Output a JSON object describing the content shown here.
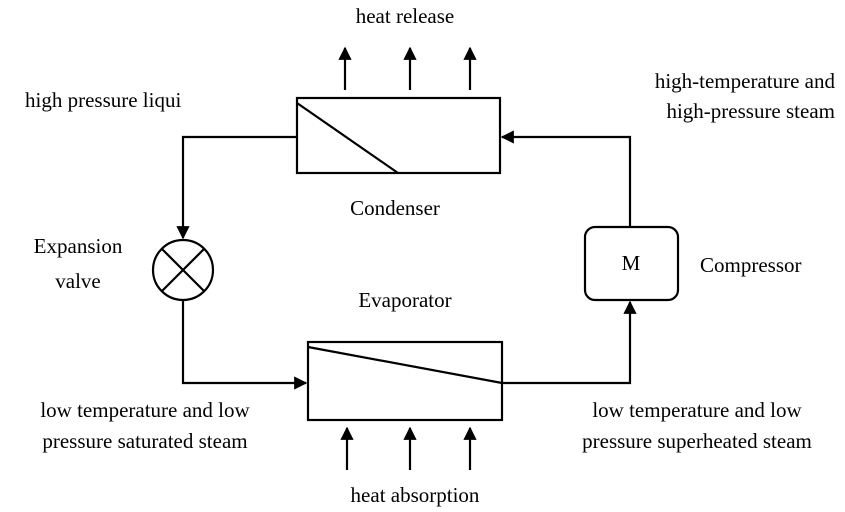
{
  "nodes": [
    {
      "label": "Condenser"
    },
    {
      "label": "Evaporator"
    },
    {
      "label": "M"
    },
    {
      "label": "Compressor"
    },
    {
      "label": [
        "Expansion",
        "valve"
      ]
    }
  ],
  "annotations": {
    "heat_release": "heat release",
    "heat_absorption": "heat absorption",
    "high_pressure_liquid": "high pressure liqui",
    "compressor_outlet": [
      "high-temperature and",
      "high-pressure steam"
    ],
    "evaporator_inlet": [
      "low temperature and low",
      "pressure saturated steam"
    ],
    "evaporator_outlet": [
      "low temperature and low",
      "pressure superheated steam"
    ]
  }
}
